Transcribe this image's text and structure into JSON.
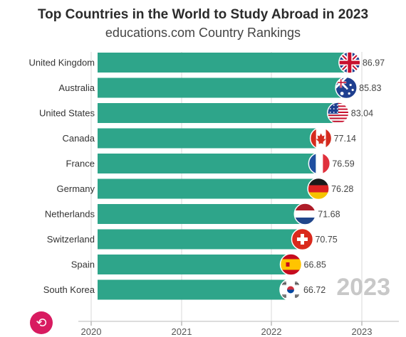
{
  "header": {
    "title": "Top Countries in the World to Study Abroad in 2023",
    "subtitle": "educations.com Country Rankings"
  },
  "year_label": "2023",
  "replay_icon": "replay-icon",
  "colors": {
    "bar": "#2ea58a",
    "grid": "#d8d8d8"
  },
  "chart_data": {
    "type": "bar",
    "orientation": "horizontal",
    "categories": [
      "United Kingdom",
      "Australia",
      "United States",
      "Canada",
      "France",
      "Germany",
      "Netherlands",
      "Switzerland",
      "Spain",
      "South Korea"
    ],
    "values": [
      86.97,
      85.83,
      83.04,
      77.14,
      76.59,
      76.28,
      71.68,
      70.75,
      66.85,
      66.72
    ],
    "value_labels": [
      "86.97",
      "85.83",
      "83.04",
      "77.14",
      "76.59",
      "76.28",
      "71.68",
      "70.75",
      "66.85",
      "66.72"
    ],
    "flags": [
      "uk-flag-icon",
      "australia-flag-icon",
      "us-flag-icon",
      "canada-flag-icon",
      "france-flag-icon",
      "germany-flag-icon",
      "netherlands-flag-icon",
      "switzerland-flag-icon",
      "spain-flag-icon",
      "south-korea-flag-icon"
    ],
    "xaxis_ticks": [
      "2020",
      "2021",
      "2022",
      "2023"
    ],
    "grid": true
  }
}
